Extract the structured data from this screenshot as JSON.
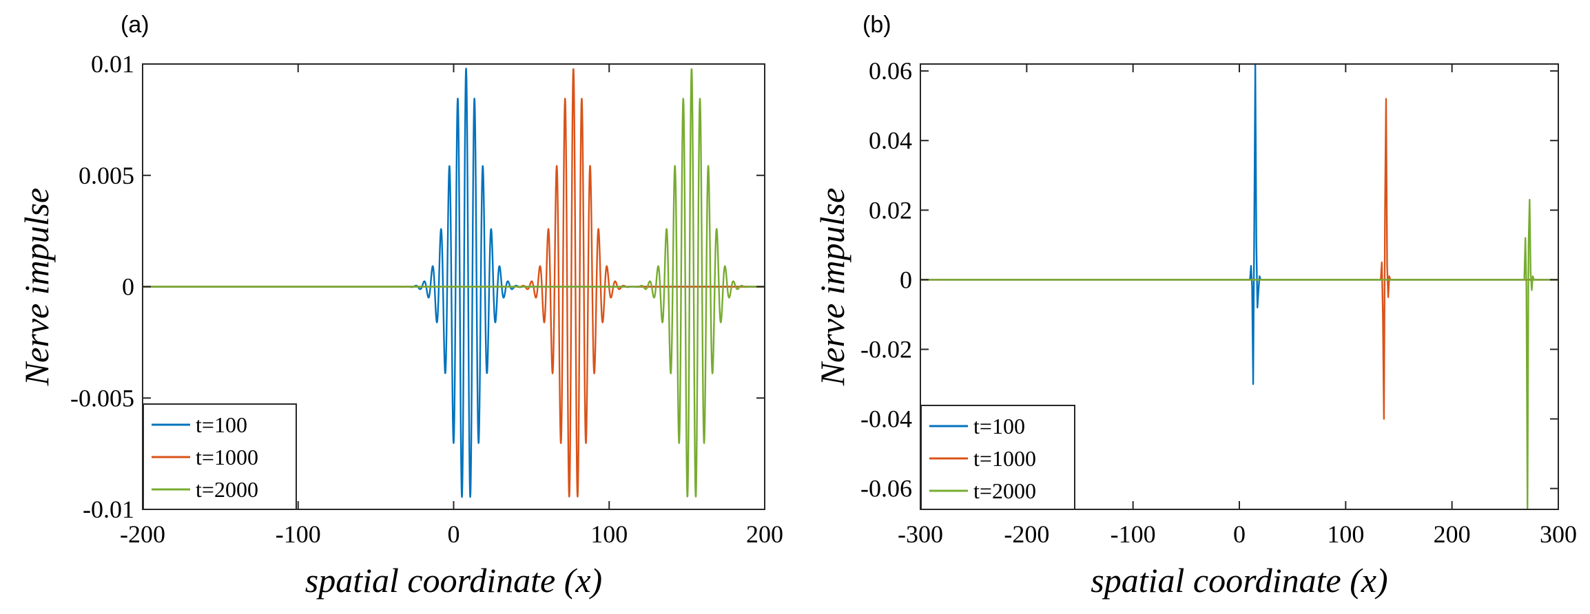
{
  "chart_data": [
    {
      "panel_label": "(a)",
      "type": "line",
      "xlabel": "spatial coordinate (x)",
      "ylabel": "Nerve impulse",
      "xlim": [
        -200,
        200
      ],
      "ylim": [
        -0.01,
        0.01
      ],
      "xticks": [
        -200,
        -100,
        0,
        100,
        200
      ],
      "xtick_labels": [
        "-200",
        "-100",
        "0",
        "100",
        "200"
      ],
      "yticks": [
        -0.01,
        -0.005,
        0,
        0.005,
        0.01
      ],
      "ytick_labels": [
        "-0.01",
        "-0.005",
        "0",
        "0.005",
        "0.01"
      ],
      "legend_position": "bottom-left",
      "series": [
        {
          "name": "t=100",
          "color": "#0072BD",
          "shape": "wave_packet",
          "center": 8,
          "amplitude": 0.0098,
          "envelope_width": 14,
          "wavelength": 5.4
        },
        {
          "name": "t=1000",
          "color": "#D95319",
          "shape": "wave_packet",
          "center": 77,
          "amplitude": 0.0098,
          "envelope_width": 14,
          "wavelength": 5.4
        },
        {
          "name": "t=2000",
          "color": "#77AC30",
          "shape": "wave_packet",
          "center": 153,
          "amplitude": 0.0098,
          "envelope_width": 14,
          "wavelength": 5.4
        }
      ]
    },
    {
      "panel_label": "(b)",
      "type": "line",
      "xlabel": "spatial coordinate (x)",
      "ylabel": "Nerve impulse",
      "xlim": [
        -300,
        300
      ],
      "ylim": [
        -0.066,
        0.062
      ],
      "xticks": [
        -300,
        -200,
        -100,
        0,
        100,
        200,
        300
      ],
      "xtick_labels": [
        "-300",
        "-200",
        "-100",
        "0",
        "100",
        "200",
        "300"
      ],
      "yticks": [
        -0.06,
        -0.04,
        -0.02,
        0,
        0.02,
        0.04,
        0.06
      ],
      "ytick_labels": [
        "-0.06",
        "-0.04",
        "-0.02",
        "0",
        "0.02",
        "0.04",
        "0.06"
      ],
      "legend_position": "bottom-left",
      "series": [
        {
          "name": "t=100",
          "color": "#0072BD",
          "shape": "spikes",
          "points": [
            [
              -300,
              0
            ],
            [
              10,
              0
            ],
            [
              11,
              0.004
            ],
            [
              12,
              -0.002
            ],
            [
              13,
              -0.03
            ],
            [
              14,
              0.015
            ],
            [
              15,
              0.062
            ],
            [
              16,
              0.01
            ],
            [
              17,
              -0.008
            ],
            [
              18,
              -0.003
            ],
            [
              19,
              0.001
            ],
            [
              20,
              0
            ],
            [
              300,
              0
            ]
          ]
        },
        {
          "name": "t=1000",
          "color": "#D95319",
          "shape": "spikes",
          "points": [
            [
              -300,
              0
            ],
            [
              133,
              0
            ],
            [
              134,
              0.005
            ],
            [
              135,
              -0.01
            ],
            [
              136,
              -0.04
            ],
            [
              137,
              0.02
            ],
            [
              138,
              0.052
            ],
            [
              139,
              0.004
            ],
            [
              140,
              -0.005
            ],
            [
              141,
              0.001
            ],
            [
              142,
              0
            ],
            [
              300,
              0
            ]
          ]
        },
        {
          "name": "t=2000",
          "color": "#77AC30",
          "shape": "spikes",
          "points": [
            [
              -300,
              0
            ],
            [
              268,
              0
            ],
            [
              269,
              0.012
            ],
            [
              270,
              -0.002
            ],
            [
              271,
              -0.066
            ],
            [
              272,
              0.01
            ],
            [
              273,
              0.023
            ],
            [
              274,
              0.002
            ],
            [
              275,
              -0.003
            ],
            [
              276,
              0.001
            ],
            [
              277,
              0
            ],
            [
              300,
              0
            ]
          ]
        }
      ]
    }
  ]
}
